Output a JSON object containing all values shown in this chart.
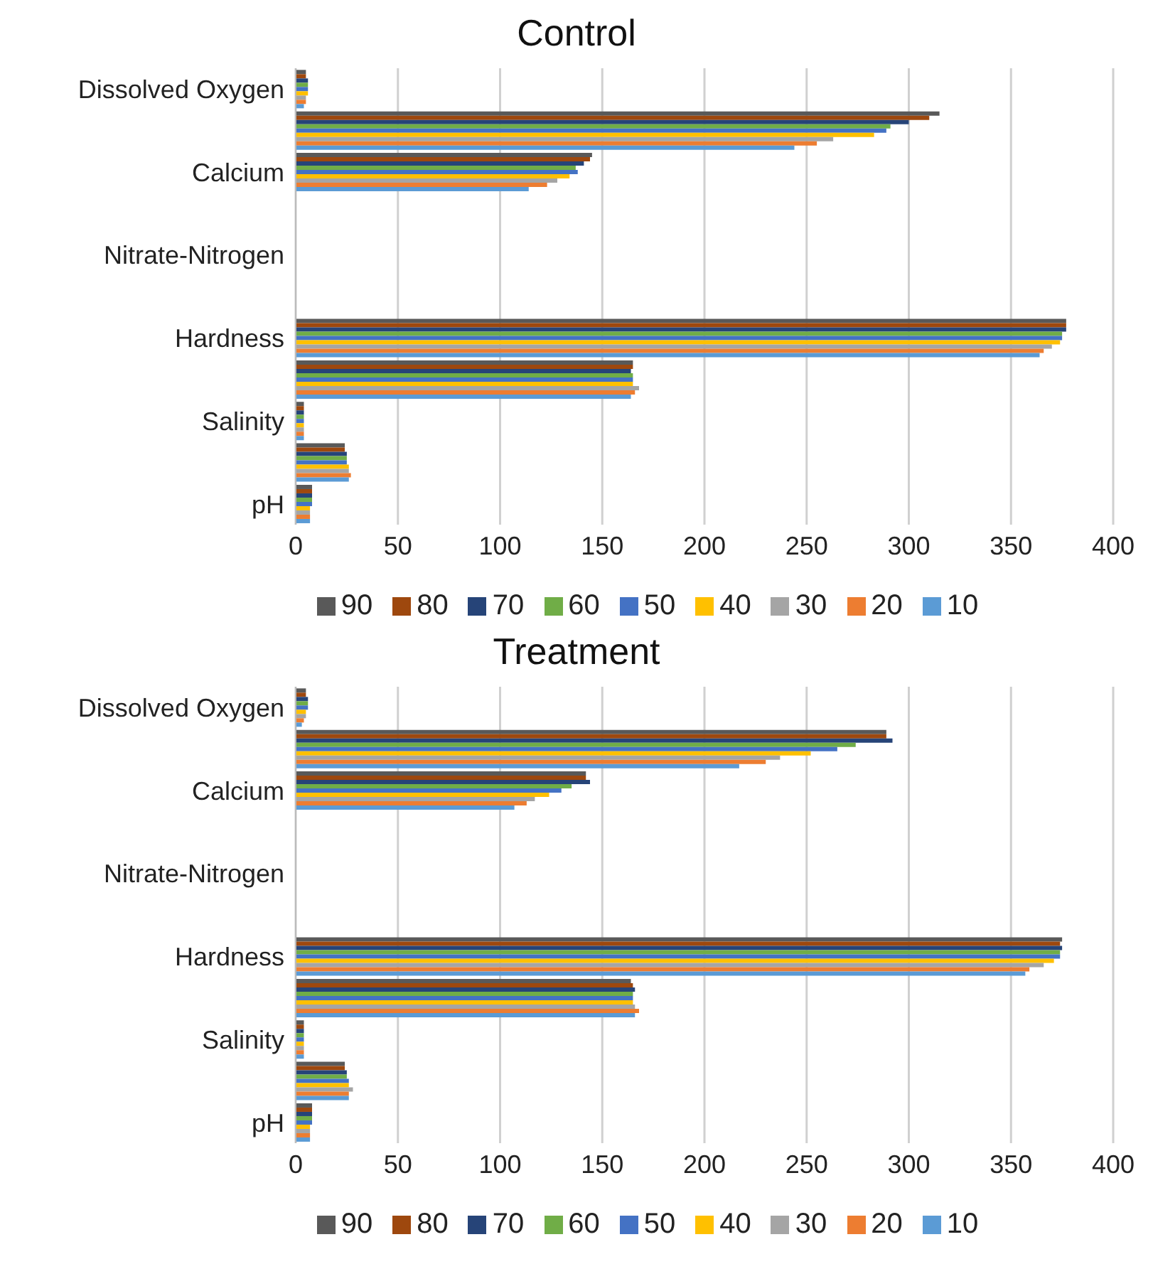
{
  "chart_data": [
    {
      "type": "bar",
      "orientation": "horizontal",
      "title": "Control",
      "categories": [
        "Dissolved Oxygen",
        null,
        "Calcium",
        null,
        "Nitrate-Nitrogen",
        null,
        "Hardness",
        null,
        "Salinity",
        null,
        "pH"
      ],
      "xlim": [
        0,
        400
      ],
      "xticks": [
        0,
        50,
        100,
        150,
        200,
        250,
        300,
        350,
        400
      ],
      "grid": "x",
      "legend": "bottom",
      "series": [
        {
          "name": "90",
          "color": "#595959",
          "values": [
            5,
            315,
            145,
            null,
            null,
            null,
            377,
            165,
            4,
            24,
            8
          ]
        },
        {
          "name": "80",
          "color": "#9e480e",
          "values": [
            5,
            310,
            144,
            null,
            null,
            null,
            377,
            165,
            4,
            24,
            8
          ]
        },
        {
          "name": "70",
          "color": "#264478",
          "values": [
            6,
            300,
            141,
            null,
            null,
            null,
            377,
            164,
            4,
            25,
            8
          ]
        },
        {
          "name": "60",
          "color": "#70ad47",
          "values": [
            6,
            291,
            137,
            null,
            null,
            null,
            375,
            165,
            4,
            25,
            8
          ]
        },
        {
          "name": "50",
          "color": "#4472c4",
          "values": [
            6,
            289,
            138,
            null,
            null,
            null,
            375,
            165,
            4,
            25,
            8
          ]
        },
        {
          "name": "40",
          "color": "#ffc000",
          "values": [
            6,
            283,
            134,
            null,
            null,
            null,
            374,
            165,
            4,
            26,
            7
          ]
        },
        {
          "name": "30",
          "color": "#a5a5a5",
          "values": [
            5,
            263,
            128,
            null,
            null,
            null,
            370,
            168,
            4,
            26,
            7
          ]
        },
        {
          "name": "20",
          "color": "#ed7d31",
          "values": [
            5,
            255,
            123,
            null,
            null,
            null,
            366,
            166,
            4,
            27,
            7
          ]
        },
        {
          "name": "10",
          "color": "#5b9bd5",
          "values": [
            4,
            244,
            114,
            null,
            null,
            null,
            364,
            164,
            4,
            26,
            7
          ]
        }
      ]
    },
    {
      "type": "bar",
      "orientation": "horizontal",
      "title": "Treatment",
      "categories": [
        "Dissolved Oxygen",
        null,
        "Calcium",
        null,
        "Nitrate-Nitrogen",
        null,
        "Hardness",
        null,
        "Salinity",
        null,
        "pH"
      ],
      "xlim": [
        0,
        400
      ],
      "xticks": [
        0,
        50,
        100,
        150,
        200,
        250,
        300,
        350,
        400
      ],
      "grid": "x",
      "legend": "bottom",
      "series": [
        {
          "name": "90",
          "color": "#595959",
          "values": [
            5,
            289,
            142,
            null,
            null,
            null,
            375,
            164,
            4,
            24,
            8
          ]
        },
        {
          "name": "80",
          "color": "#9e480e",
          "values": [
            5,
            289,
            142,
            null,
            null,
            null,
            374,
            165,
            4,
            24,
            8
          ]
        },
        {
          "name": "70",
          "color": "#264478",
          "values": [
            6,
            292,
            144,
            null,
            null,
            null,
            375,
            166,
            4,
            25,
            8
          ]
        },
        {
          "name": "60",
          "color": "#70ad47",
          "values": [
            6,
            274,
            135,
            null,
            null,
            null,
            374,
            165,
            4,
            25,
            8
          ]
        },
        {
          "name": "50",
          "color": "#4472c4",
          "values": [
            6,
            265,
            130,
            null,
            null,
            null,
            374,
            165,
            4,
            26,
            8
          ]
        },
        {
          "name": "40",
          "color": "#ffc000",
          "values": [
            5,
            252,
            124,
            null,
            null,
            null,
            371,
            165,
            4,
            26,
            7
          ]
        },
        {
          "name": "30",
          "color": "#a5a5a5",
          "values": [
            5,
            237,
            117,
            null,
            null,
            null,
            366,
            166,
            4,
            28,
            7
          ]
        },
        {
          "name": "20",
          "color": "#ed7d31",
          "values": [
            4,
            230,
            113,
            null,
            null,
            null,
            359,
            168,
            4,
            26,
            7
          ]
        },
        {
          "name": "10",
          "color": "#5b9bd5",
          "values": [
            3,
            217,
            107,
            null,
            null,
            null,
            357,
            166,
            4,
            26,
            7
          ]
        }
      ]
    }
  ]
}
